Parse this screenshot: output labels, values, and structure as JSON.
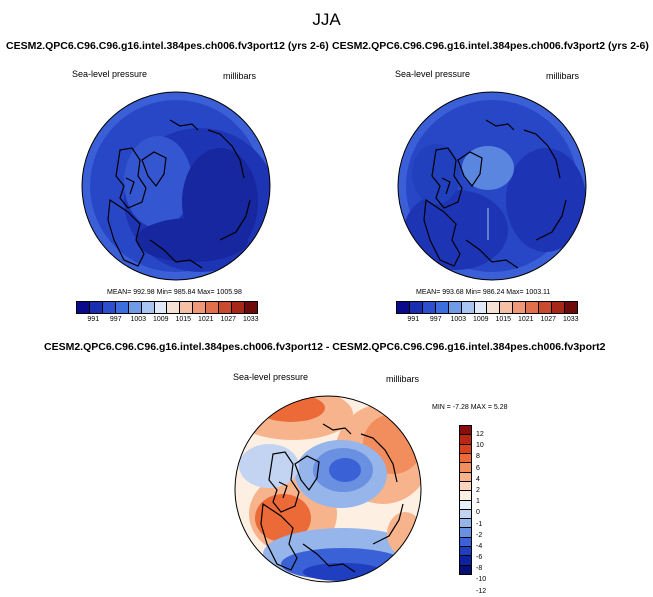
{
  "figure": {
    "title": "JJA",
    "panel_left_title": "CESM2.QPC6.C96.C96.g16.intel.384pes.ch006.fv3port12 (yrs 2-6)",
    "panel_right_title": "CESM2.QPC6.C96.C96.g16.intel.384pes.ch006.fv3port2 (yrs 2-6)",
    "panel_diff_title": "CESM2.QPC6.C96.C96.g16.intel.384pes.ch006.fv3port12 - CESM2.QPC6.C96.C96.g16.intel.384pes.ch006.fv3port2"
  },
  "panels": {
    "left": {
      "variable": "Sea-level pressure",
      "units": "millibars",
      "stats": "MEAN= 992.98  Min= 985.84  Max= 1005.98"
    },
    "right": {
      "variable": "Sea-level pressure",
      "units": "millibars",
      "stats": "MEAN= 993.68  Min= 986.24  Max= 1003.11"
    },
    "diff": {
      "variable": "Sea-level pressure",
      "units": "millibars",
      "stats": "MIN = -7.28 MAX =  5.28"
    }
  },
  "abs_colorbar": {
    "labels": [
      "991",
      "997",
      "1003",
      "1009",
      "1015",
      "1021",
      "1027",
      "1033"
    ],
    "colors": [
      "#0a0a8c",
      "#1a2fb0",
      "#2c4fd0",
      "#3d6ee0",
      "#6f9ae8",
      "#a8c4f0",
      "#dde8f8",
      "#f6e2d5",
      "#f5c0a5",
      "#f19878",
      "#e2704c",
      "#c94a2e",
      "#a82818",
      "#6e0a0a"
    ]
  },
  "diff_colorbar": {
    "labels": [
      "12",
      "10",
      "8",
      "6",
      "4",
      "2",
      "1",
      "0",
      "-1",
      "-2",
      "-4",
      "-6",
      "-8",
      "-10",
      "-12"
    ],
    "colors": [
      "#8a0d0d",
      "#b82614",
      "#d8431e",
      "#ec6a38",
      "#f28d5e",
      "#f7b48c",
      "#fbd5bc",
      "#fdf0e3",
      "#e6eefa",
      "#c3d4f2",
      "#96b5ea",
      "#6a90e2",
      "#3b61d6",
      "#1f3fc0",
      "#0c22a0",
      "#060f73"
    ]
  }
}
